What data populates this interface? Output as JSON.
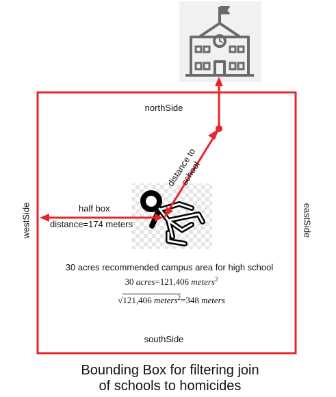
{
  "diagram": {
    "caption_line1": "Bounding Box for filtering join",
    "caption_line2": "of schools to homicides",
    "sides": {
      "north": "northSide",
      "south": "southSide",
      "west": "westSide",
      "east": "eastSide"
    },
    "half_box_label": "half box",
    "distance_label": "distance=174 meters",
    "distance_to_school_line1": "distance to",
    "distance_to_school_line2": "school",
    "campus_text": "30 acres recommended campus area for high school",
    "equation1": {
      "lhs_number": "30",
      "lhs_unit": "acres",
      "rhs": "=121,406",
      "rhs_unit": "meters",
      "exponent": "2"
    },
    "equation2": {
      "root_symbol": "√",
      "radicand_number": "121,406",
      "radicand_unit": "meters",
      "exponent": "2",
      "result": "=348",
      "result_unit": "meters"
    },
    "colors": {
      "box_red": "#e8252a",
      "school_gray": "#6b6b6b",
      "figure_black": "#000000"
    }
  }
}
